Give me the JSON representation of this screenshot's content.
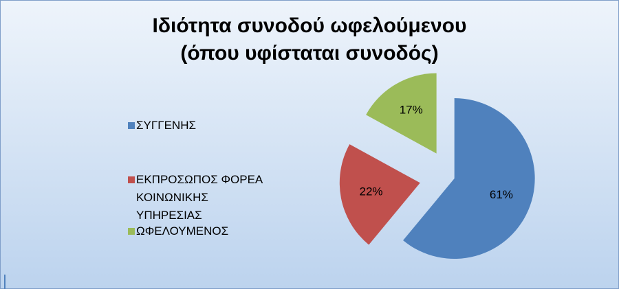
{
  "chart_data": {
    "type": "pie",
    "title": "Ιδιότητα συνοδού ωφελούμενου\n(όπου υφίσταται συνοδός)",
    "categories": [
      "ΣΥΓΓΕΝΗΣ",
      "ΕΚΠΡΟΣΩΠΟΣ ΦΟΡΕΑ\nΚΟΙΝΩΝΙΚΗΣ ΥΠΗΡΕΣΙΑΣ",
      "ΩΦΕΛΟΥΜΕΝΟΣ"
    ],
    "values": [
      61,
      22,
      17
    ],
    "value_labels": [
      "61%",
      "22%",
      "17%"
    ],
    "colors": [
      "#4f81bd",
      "#c0504d",
      "#9bbb59"
    ],
    "legend": "left"
  }
}
